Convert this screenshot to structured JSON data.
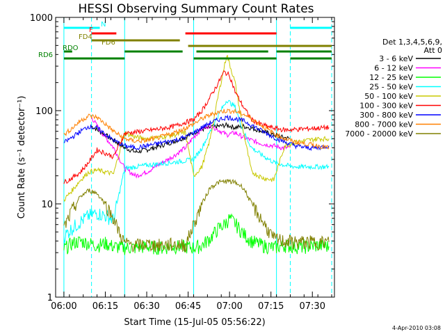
{
  "chart_data": {
    "type": "line",
    "title": "HESSI Observing Summary Count Rates",
    "xlabel": "Start Time (15-Jul-05 05:56:22)",
    "ylabel": "Count Rate (s⁻¹ detector⁻¹)",
    "y_scale": "log",
    "ylim": [
      1,
      1000
    ],
    "xlim_minutes": [
      -3,
      98
    ],
    "x_tick_labels": [
      "06:00",
      "06:15",
      "06:30",
      "06:45",
      "07:00",
      "07:15",
      "07:30"
    ],
    "x_tick_minutes": [
      0,
      15,
      30,
      45,
      60,
      75,
      90
    ],
    "y_tick_labels": [
      "1",
      "10",
      "100",
      "1000"
    ],
    "y_tick_values": [
      1,
      10,
      100,
      1000
    ],
    "legend_header": [
      "Det 1,3,4,5,6,9,",
      "Att 0"
    ],
    "legend_position": "right",
    "grid": false,
    "day_night_boundaries_minutes": [
      0,
      22,
      47,
      77
    ],
    "saa_boundaries_minutes": [
      10,
      82,
      97
    ],
    "flags": [
      {
        "label": "N",
        "color": "#00ffff",
        "segments": [
          [
            0,
            13
          ],
          [
            82,
            97
          ]
        ]
      },
      {
        "label": "F",
        "color": "#ff0000",
        "segments": [
          [
            10,
            19
          ],
          [
            44,
            77
          ]
        ]
      },
      {
        "label": "FD4",
        "color": "#808000",
        "segments": [
          [
            10,
            42
          ]
        ]
      },
      {
        "label": "FD6",
        "color": "#808000",
        "segments": [
          [
            45,
            97
          ]
        ]
      },
      {
        "label": "RDO",
        "color": "#008000",
        "segments": [
          [
            0,
            3
          ],
          [
            22,
            43
          ],
          [
            48,
            74
          ],
          [
            77,
            97
          ]
        ]
      },
      {
        "label": "RD6",
        "color": "#008000",
        "segments": [
          [
            0,
            22
          ],
          [
            47,
            77
          ],
          [
            82,
            97
          ]
        ]
      }
    ],
    "series": [
      {
        "name": "3 - 6 keV",
        "color": "#000000",
        "points": [
          [
            10,
            68
          ],
          [
            13,
            60
          ],
          [
            18,
            48
          ],
          [
            22,
            40
          ],
          [
            26,
            36
          ],
          [
            30,
            38
          ],
          [
            35,
            42
          ],
          [
            40,
            47
          ],
          [
            44,
            52
          ],
          [
            47,
            58
          ],
          [
            50,
            63
          ],
          [
            53,
            66
          ],
          [
            56,
            68
          ],
          [
            59,
            70
          ],
          [
            62,
            66
          ],
          [
            65,
            68
          ],
          [
            68,
            65
          ],
          [
            72,
            60
          ],
          [
            76,
            55
          ],
          [
            79,
            52
          ],
          [
            82,
            50
          ]
        ]
      },
      {
        "name": "6 - 12 keV",
        "color": "#ff00ff",
        "points": [
          [
            10,
            85
          ],
          [
            13,
            62
          ],
          [
            18,
            40
          ],
          [
            22,
            24
          ],
          [
            26,
            20
          ],
          [
            30,
            22
          ],
          [
            35,
            27
          ],
          [
            40,
            33
          ],
          [
            44,
            40
          ],
          [
            47,
            52
          ],
          [
            50,
            64
          ],
          [
            53,
            70
          ],
          [
            56,
            62
          ],
          [
            59,
            55
          ],
          [
            62,
            58
          ],
          [
            65,
            52
          ],
          [
            68,
            48
          ],
          [
            72,
            44
          ],
          [
            76,
            42
          ],
          [
            79,
            40
          ],
          [
            82,
            40
          ]
        ]
      },
      {
        "name": "12 - 25 keV",
        "color": "#00ff00",
        "points": [
          [
            0,
            3.3
          ],
          [
            3,
            3.8
          ],
          [
            6,
            4.0
          ],
          [
            9,
            3.8
          ],
          [
            12,
            3.6
          ],
          [
            15,
            3.8
          ],
          [
            18,
            3.5
          ],
          [
            22,
            3.4
          ],
          [
            26,
            3.4
          ],
          [
            30,
            3.5
          ],
          [
            35,
            3.4
          ],
          [
            40,
            3.5
          ],
          [
            44,
            3.5
          ],
          [
            47,
            3.4
          ],
          [
            50,
            3.6
          ],
          [
            53,
            4.3
          ],
          [
            56,
            5.5
          ],
          [
            58,
            6.0
          ],
          [
            60,
            7.0
          ],
          [
            62,
            6.2
          ],
          [
            65,
            4.8
          ],
          [
            68,
            4.0
          ],
          [
            72,
            3.6
          ],
          [
            76,
            3.4
          ],
          [
            80,
            3.6
          ],
          [
            84,
            3.5
          ],
          [
            88,
            3.5
          ],
          [
            92,
            3.6
          ],
          [
            96,
            3.5
          ]
        ]
      },
      {
        "name": "25 - 50 keV",
        "color": "#00ffff",
        "points": [
          [
            0,
            4.5
          ],
          [
            3,
            5.5
          ],
          [
            6,
            6.5
          ],
          [
            9,
            7.5
          ],
          [
            12,
            8.0
          ],
          [
            15,
            7.5
          ],
          [
            18,
            6.8
          ],
          [
            22,
            24
          ],
          [
            26,
            25
          ],
          [
            30,
            26
          ],
          [
            35,
            27
          ],
          [
            40,
            28
          ],
          [
            44,
            29
          ],
          [
            47,
            30
          ],
          [
            50,
            40
          ],
          [
            53,
            60
          ],
          [
            56,
            90
          ],
          [
            59,
            130
          ],
          [
            62,
            110
          ],
          [
            65,
            60
          ],
          [
            68,
            40
          ],
          [
            72,
            33
          ],
          [
            76,
            28
          ],
          [
            80,
            26
          ],
          [
            84,
            25
          ],
          [
            88,
            25
          ],
          [
            92,
            25
          ],
          [
            96,
            25
          ]
        ]
      },
      {
        "name": "50 - 100 keV",
        "color": "#c8c800",
        "points": [
          [
            0,
            11
          ],
          [
            3,
            14
          ],
          [
            6,
            18
          ],
          [
            9,
            22
          ],
          [
            12,
            23
          ],
          [
            15,
            22
          ],
          [
            18,
            21
          ],
          [
            22,
            58
          ],
          [
            26,
            52
          ],
          [
            30,
            50
          ],
          [
            35,
            52
          ],
          [
            40,
            55
          ],
          [
            44,
            58
          ],
          [
            47,
            20
          ],
          [
            50,
            25
          ],
          [
            53,
            50
          ],
          [
            56,
            150
          ],
          [
            59,
            400
          ],
          [
            62,
            200
          ],
          [
            65,
            60
          ],
          [
            68,
            22
          ],
          [
            72,
            19
          ],
          [
            76,
            18
          ],
          [
            80,
            42
          ],
          [
            84,
            46
          ],
          [
            88,
            48
          ],
          [
            92,
            50
          ],
          [
            96,
            50
          ]
        ]
      },
      {
        "name": "100 - 300 keV",
        "color": "#ff0000",
        "points": [
          [
            0,
            17
          ],
          [
            3,
            19
          ],
          [
            6,
            22
          ],
          [
            9,
            28
          ],
          [
            12,
            38
          ],
          [
            15,
            35
          ],
          [
            18,
            32
          ],
          [
            22,
            57
          ],
          [
            26,
            59
          ],
          [
            30,
            61
          ],
          [
            35,
            64
          ],
          [
            40,
            68
          ],
          [
            44,
            75
          ],
          [
            47,
            80
          ],
          [
            50,
            100
          ],
          [
            53,
            140
          ],
          [
            56,
            200
          ],
          [
            58,
            260
          ],
          [
            60,
            240
          ],
          [
            62,
            160
          ],
          [
            65,
            110
          ],
          [
            68,
            80
          ],
          [
            72,
            70
          ],
          [
            76,
            65
          ],
          [
            80,
            62
          ],
          [
            84,
            63
          ],
          [
            88,
            64
          ],
          [
            92,
            65
          ],
          [
            96,
            66
          ]
        ]
      },
      {
        "name": "300 - 800 keV",
        "color": "#0000ff",
        "points": [
          [
            0,
            45
          ],
          [
            3,
            52
          ],
          [
            6,
            60
          ],
          [
            9,
            68
          ],
          [
            12,
            65
          ],
          [
            15,
            56
          ],
          [
            18,
            48
          ],
          [
            22,
            42
          ],
          [
            26,
            40
          ],
          [
            30,
            42
          ],
          [
            35,
            45
          ],
          [
            40,
            48
          ],
          [
            44,
            52
          ],
          [
            47,
            58
          ],
          [
            50,
            66
          ],
          [
            53,
            74
          ],
          [
            56,
            80
          ],
          [
            59,
            85
          ],
          [
            62,
            82
          ],
          [
            65,
            78
          ],
          [
            68,
            70
          ],
          [
            72,
            60
          ],
          [
            76,
            52
          ],
          [
            80,
            46
          ],
          [
            84,
            42
          ],
          [
            88,
            40
          ],
          [
            92,
            40
          ],
          [
            96,
            42
          ]
        ]
      },
      {
        "name": "800 - 7000 keV",
        "color": "#ff8000",
        "points": [
          [
            0,
            55
          ],
          [
            3,
            65
          ],
          [
            6,
            78
          ],
          [
            9,
            88
          ],
          [
            12,
            85
          ],
          [
            15,
            72
          ],
          [
            18,
            60
          ],
          [
            22,
            50
          ],
          [
            26,
            47
          ],
          [
            30,
            48
          ],
          [
            35,
            52
          ],
          [
            40,
            58
          ],
          [
            44,
            65
          ],
          [
            47,
            72
          ],
          [
            50,
            82
          ],
          [
            53,
            90
          ],
          [
            56,
            97
          ],
          [
            59,
            100
          ],
          [
            62,
            98
          ],
          [
            65,
            92
          ],
          [
            68,
            82
          ],
          [
            72,
            68
          ],
          [
            76,
            57
          ],
          [
            80,
            50
          ],
          [
            84,
            46
          ],
          [
            88,
            44
          ],
          [
            92,
            42
          ],
          [
            96,
            40
          ]
        ]
      },
      {
        "name": "7000 - 20000 keV",
        "color": "#808000",
        "points": [
          [
            0,
            5.5
          ],
          [
            3,
            8.5
          ],
          [
            6,
            12
          ],
          [
            9,
            14
          ],
          [
            12,
            13
          ],
          [
            15,
            10
          ],
          [
            18,
            7
          ],
          [
            20,
            5
          ],
          [
            22,
            3.8
          ],
          [
            26,
            3.6
          ],
          [
            30,
            3.7
          ],
          [
            35,
            3.6
          ],
          [
            40,
            3.7
          ],
          [
            44,
            3.6
          ],
          [
            47,
            6
          ],
          [
            50,
            10
          ],
          [
            53,
            15
          ],
          [
            56,
            17
          ],
          [
            59,
            17.5
          ],
          [
            62,
            17
          ],
          [
            65,
            15
          ],
          [
            68,
            10
          ],
          [
            72,
            6.5
          ],
          [
            76,
            4.2
          ],
          [
            80,
            4.0
          ],
          [
            84,
            3.9
          ],
          [
            88,
            3.9
          ],
          [
            92,
            3.9
          ],
          [
            96,
            3.9
          ]
        ]
      }
    ],
    "timestamp": "4-Apr-2010 03:08"
  }
}
